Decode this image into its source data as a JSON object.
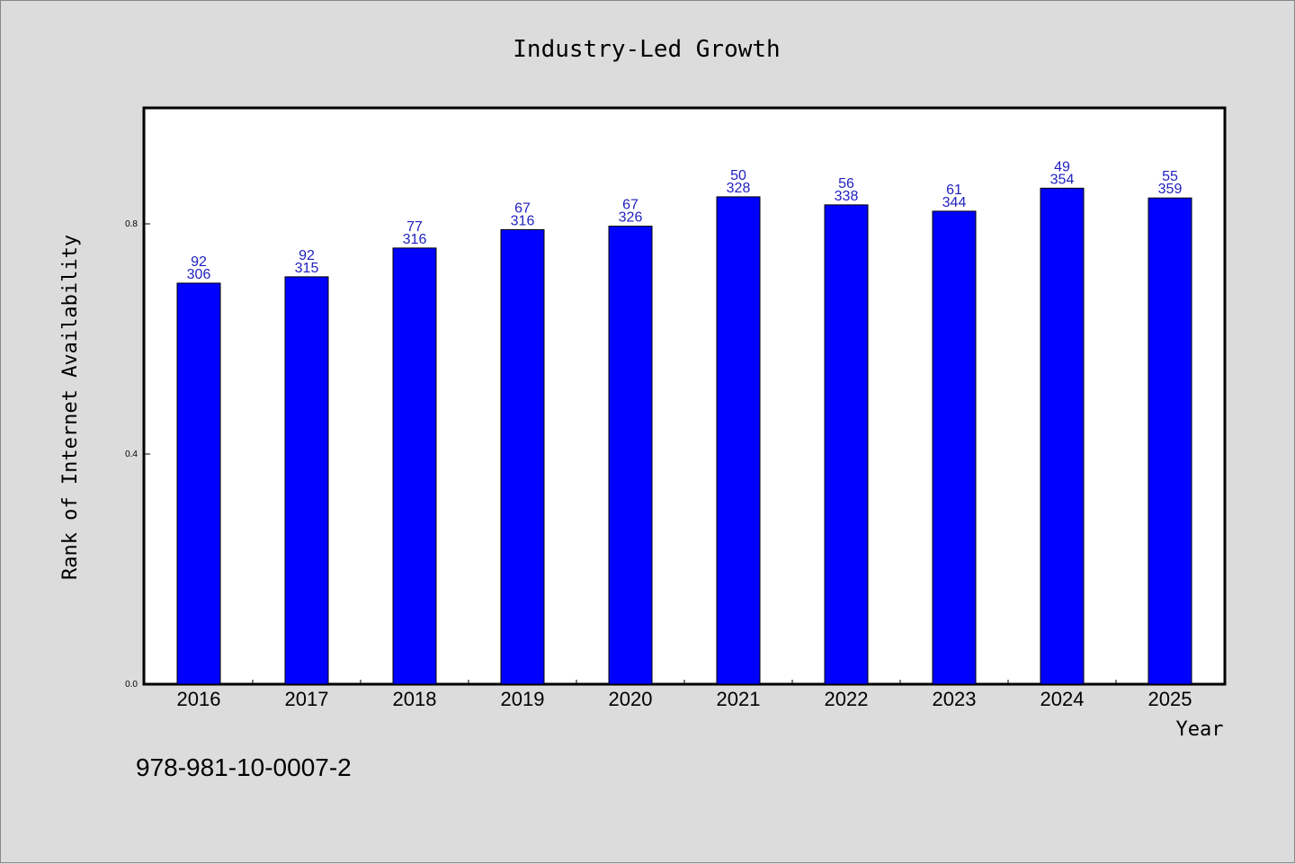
{
  "chart_data": {
    "type": "bar",
    "title": "Industry-Led Growth",
    "xlabel": "Year",
    "ylabel": "Rank of Internet Availability",
    "categories": [
      "2016",
      "2017",
      "2018",
      "2019",
      "2020",
      "2021",
      "2022",
      "2023",
      "2024",
      "2025"
    ],
    "values": [
      0.697,
      0.708,
      0.758,
      0.79,
      0.796,
      0.847,
      0.833,
      0.822,
      0.862,
      0.845
    ],
    "label_top": [
      "92",
      "92",
      "77",
      "67",
      "67",
      "50",
      "56",
      "61",
      "49",
      "55"
    ],
    "label_bottom": [
      "306",
      "315",
      "316",
      "316",
      "326",
      "328",
      "338",
      "344",
      "354",
      "359"
    ],
    "yticks": [
      "0.0",
      "0.4",
      "0.8"
    ],
    "ylim": [
      0,
      1.0
    ],
    "grid": false,
    "bar_color": "#0000ff",
    "label_color": "#1f1fbf"
  },
  "footer": {
    "isbn": "978-981-10-0007-2"
  }
}
